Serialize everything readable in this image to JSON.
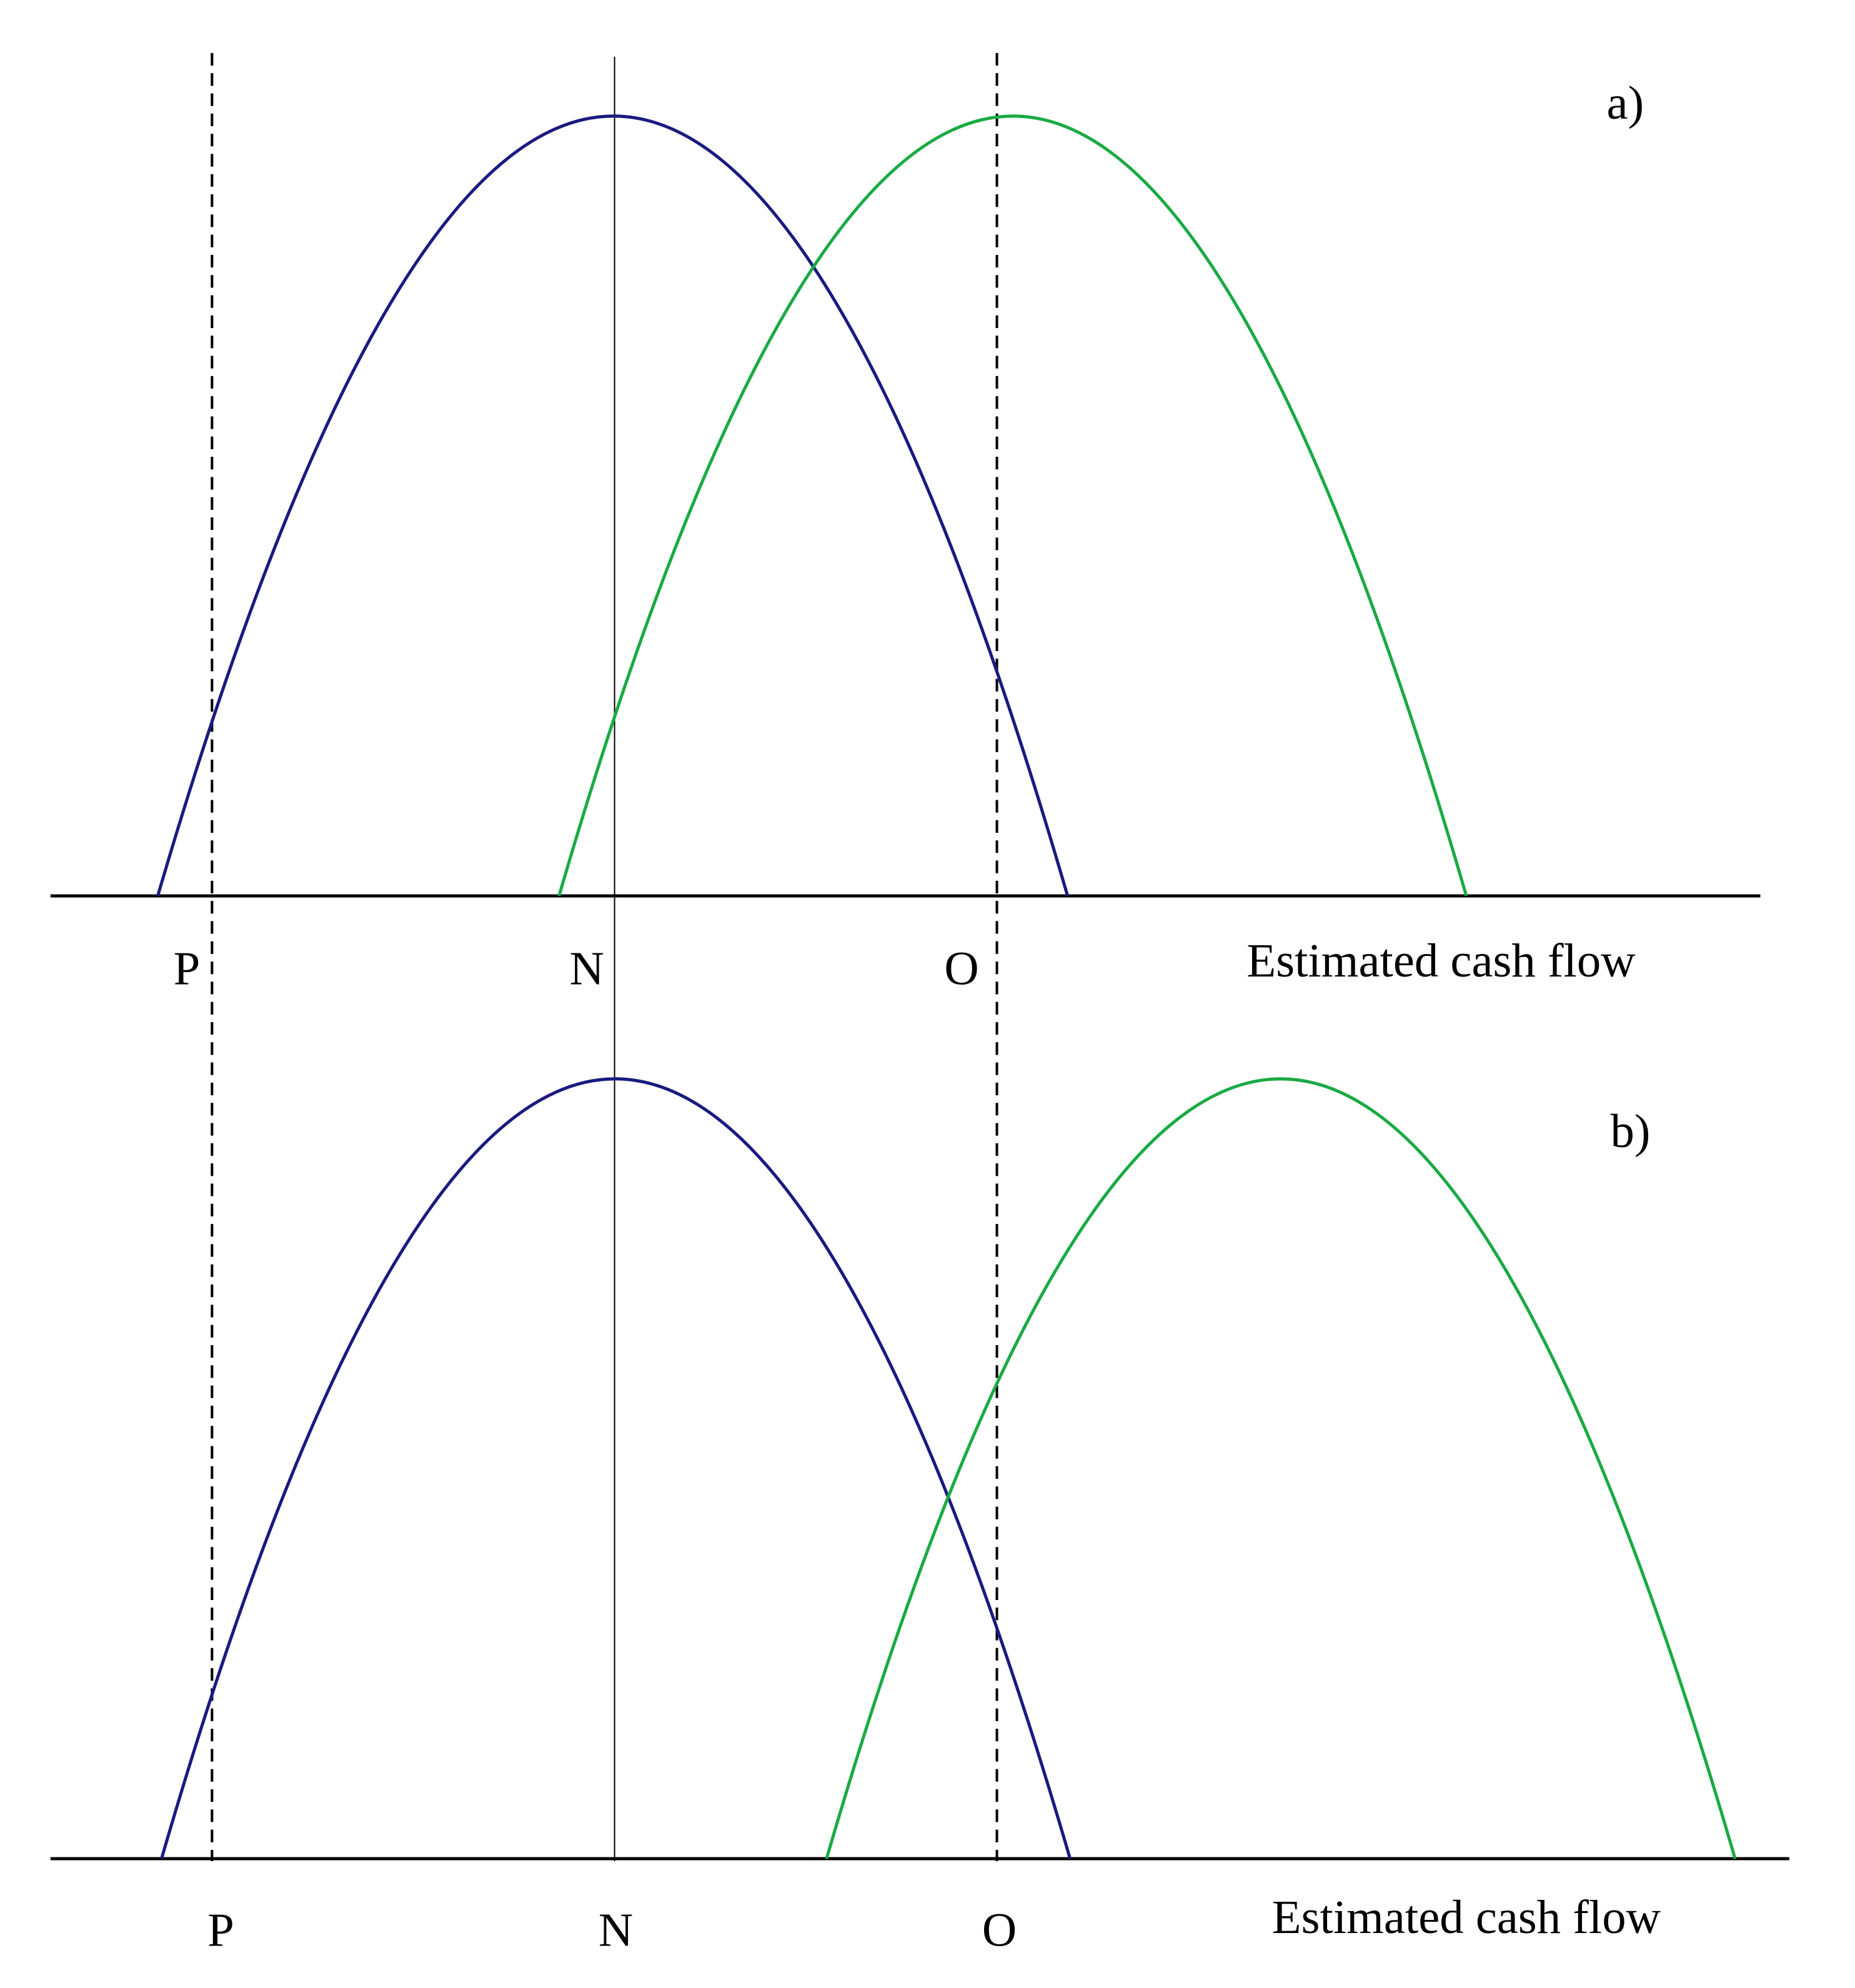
{
  "panels": [
    {
      "label": "a)",
      "axis_label": "Estimated cash flow",
      "markers": [
        "P",
        "N",
        "O"
      ]
    },
    {
      "label": "b)",
      "axis_label": "Estimated cash flow",
      "markers": [
        "P",
        "N",
        "O"
      ]
    }
  ]
}
